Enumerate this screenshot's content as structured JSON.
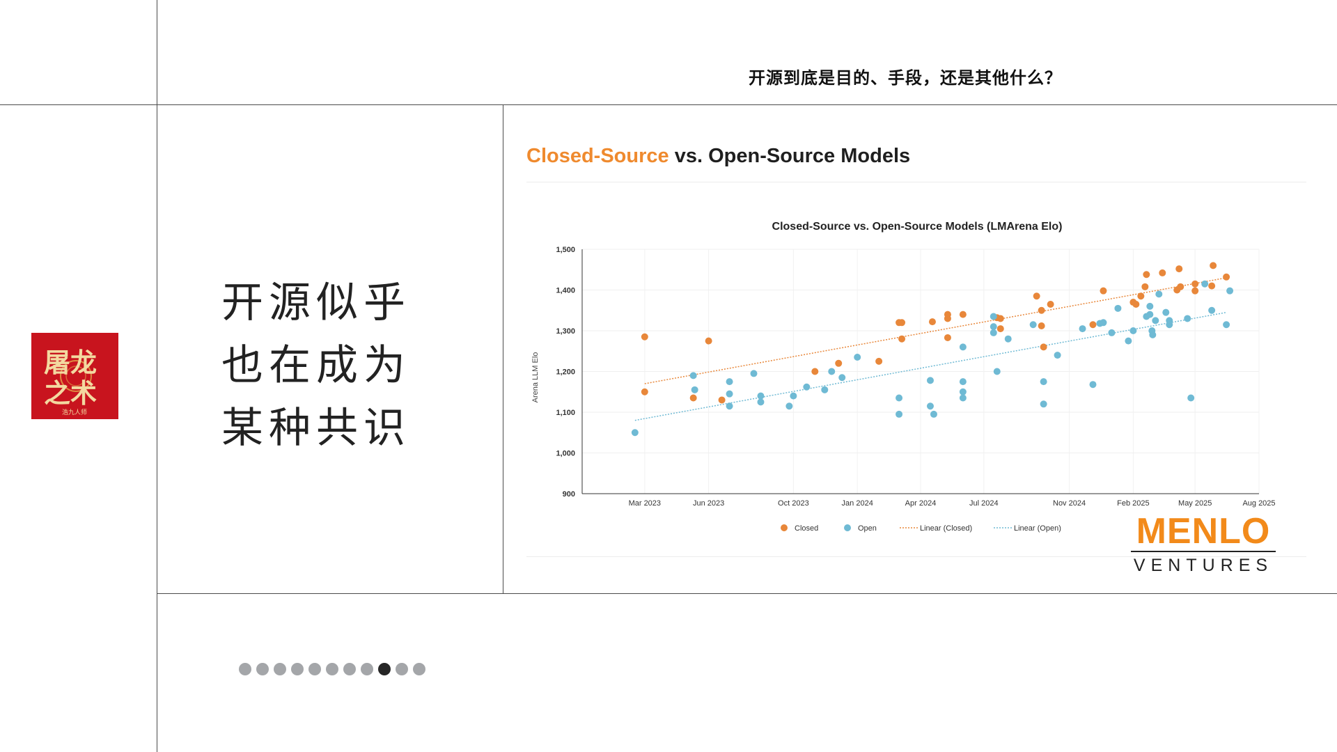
{
  "header": {
    "title": "开源到底是目的、手段，还是其他什么？"
  },
  "logo": {
    "lines": [
      "屠龙",
      "之术"
    ],
    "caption": "浩九人师",
    "background": "#c8141e"
  },
  "slide_text": {
    "lines": [
      "开源似乎",
      "也在成为",
      "某种共识"
    ]
  },
  "card": {
    "heading_accent": "Closed-Source",
    "heading_rest": " vs. Open-Source Models",
    "accent_color": "#ef8a2e"
  },
  "brand": {
    "name": "MENLO",
    "sub": "VENTURES",
    "color": "#f28a1a"
  },
  "pager": {
    "total": 11,
    "active_index": 8
  },
  "chart_data": {
    "type": "scatter",
    "title": "Closed-Source vs. Open-Source Models (LMArena Elo)",
    "xlabel": "",
    "ylabel": "Arena LLM Elo",
    "xlim": [
      "2022-12-01",
      "2025-08-01"
    ],
    "ylim": [
      900,
      1500
    ],
    "x_ticks": [
      {
        "date": "2023-03-01",
        "label": "Mar 2023"
      },
      {
        "date": "2023-06-01",
        "label": "Jun 2023"
      },
      {
        "date": "2023-10-01",
        "label": "Oct 2023"
      },
      {
        "date": "2024-01-01",
        "label": "Jan 2024"
      },
      {
        "date": "2024-04-01",
        "label": "Apr 2024"
      },
      {
        "date": "2024-07-01",
        "label": "Jul 2024"
      },
      {
        "date": "2024-11-01",
        "label": "Nov 2024"
      },
      {
        "date": "2025-02-01",
        "label": "Feb 2025"
      },
      {
        "date": "2025-05-01",
        "label": "May 2025"
      },
      {
        "date": "2025-08-01",
        "label": "Aug 2025"
      }
    ],
    "y_ticks": [
      900,
      1000,
      1100,
      1200,
      1300,
      1400,
      1500
    ],
    "y_tick_labels": [
      "900",
      "1,000",
      "1,100",
      "1,200",
      "1,300",
      "1,400",
      "1,500"
    ],
    "grid": true,
    "legend": {
      "placement": "bottom",
      "items": [
        "Closed",
        "Open",
        "Linear (Closed)",
        "Linear (Open)"
      ]
    },
    "colors": {
      "closed": "#e8873a",
      "open": "#6fbad4"
    },
    "series": [
      {
        "name": "Closed",
        "points": [
          {
            "x": "2023-03-01",
            "y": 1285
          },
          {
            "x": "2023-03-01",
            "y": 1150
          },
          {
            "x": "2023-05-10",
            "y": 1135
          },
          {
            "x": "2023-06-01",
            "y": 1275
          },
          {
            "x": "2023-06-20",
            "y": 1130
          },
          {
            "x": "2023-11-01",
            "y": 1200
          },
          {
            "x": "2023-12-05",
            "y": 1220
          },
          {
            "x": "2024-02-01",
            "y": 1225
          },
          {
            "x": "2024-03-01",
            "y": 1320
          },
          {
            "x": "2024-03-05",
            "y": 1280
          },
          {
            "x": "2024-03-05",
            "y": 1320
          },
          {
            "x": "2024-04-18",
            "y": 1322
          },
          {
            "x": "2024-05-10",
            "y": 1340
          },
          {
            "x": "2024-05-10",
            "y": 1330
          },
          {
            "x": "2024-05-10",
            "y": 1283
          },
          {
            "x": "2024-06-01",
            "y": 1340
          },
          {
            "x": "2024-07-20",
            "y": 1332
          },
          {
            "x": "2024-07-25",
            "y": 1305
          },
          {
            "x": "2024-07-25",
            "y": 1330
          },
          {
            "x": "2024-09-15",
            "y": 1385
          },
          {
            "x": "2024-09-22",
            "y": 1350
          },
          {
            "x": "2024-09-22",
            "y": 1312
          },
          {
            "x": "2024-09-25",
            "y": 1260
          },
          {
            "x": "2024-10-05",
            "y": 1365
          },
          {
            "x": "2024-12-05",
            "y": 1315
          },
          {
            "x": "2024-12-20",
            "y": 1398
          },
          {
            "x": "2025-02-01",
            "y": 1370
          },
          {
            "x": "2025-02-05",
            "y": 1365
          },
          {
            "x": "2025-02-12",
            "y": 1385
          },
          {
            "x": "2025-02-18",
            "y": 1408
          },
          {
            "x": "2025-02-20",
            "y": 1438
          },
          {
            "x": "2025-03-15",
            "y": 1442
          },
          {
            "x": "2025-04-05",
            "y": 1400
          },
          {
            "x": "2025-04-08",
            "y": 1452
          },
          {
            "x": "2025-04-10",
            "y": 1408
          },
          {
            "x": "2025-05-01",
            "y": 1415
          },
          {
            "x": "2025-05-01",
            "y": 1398
          },
          {
            "x": "2025-05-25",
            "y": 1410
          },
          {
            "x": "2025-05-27",
            "y": 1460
          },
          {
            "x": "2025-06-15",
            "y": 1432
          }
        ]
      },
      {
        "name": "Open",
        "points": [
          {
            "x": "2023-02-15",
            "y": 1050
          },
          {
            "x": "2023-05-10",
            "y": 1190
          },
          {
            "x": "2023-05-12",
            "y": 1155
          },
          {
            "x": "2023-07-01",
            "y": 1175
          },
          {
            "x": "2023-07-01",
            "y": 1145
          },
          {
            "x": "2023-07-01",
            "y": 1115
          },
          {
            "x": "2023-08-05",
            "y": 1195
          },
          {
            "x": "2023-08-15",
            "y": 1140
          },
          {
            "x": "2023-08-15",
            "y": 1125
          },
          {
            "x": "2023-09-25",
            "y": 1115
          },
          {
            "x": "2023-10-01",
            "y": 1140
          },
          {
            "x": "2023-10-20",
            "y": 1162
          },
          {
            "x": "2023-11-15",
            "y": 1155
          },
          {
            "x": "2023-11-25",
            "y": 1200
          },
          {
            "x": "2023-12-10",
            "y": 1185
          },
          {
            "x": "2024-01-01",
            "y": 1235
          },
          {
            "x": "2024-03-01",
            "y": 1095
          },
          {
            "x": "2024-03-01",
            "y": 1135
          },
          {
            "x": "2024-04-15",
            "y": 1115
          },
          {
            "x": "2024-04-15",
            "y": 1178
          },
          {
            "x": "2024-04-20",
            "y": 1095
          },
          {
            "x": "2024-06-01",
            "y": 1260
          },
          {
            "x": "2024-06-01",
            "y": 1175
          },
          {
            "x": "2024-06-01",
            "y": 1150
          },
          {
            "x": "2024-06-01",
            "y": 1135
          },
          {
            "x": "2024-07-15",
            "y": 1335
          },
          {
            "x": "2024-07-15",
            "y": 1310
          },
          {
            "x": "2024-07-15",
            "y": 1295
          },
          {
            "x": "2024-07-20",
            "y": 1200
          },
          {
            "x": "2024-08-05",
            "y": 1280
          },
          {
            "x": "2024-09-10",
            "y": 1315
          },
          {
            "x": "2024-09-25",
            "y": 1175
          },
          {
            "x": "2024-09-25",
            "y": 1120
          },
          {
            "x": "2024-10-15",
            "y": 1240
          },
          {
            "x": "2024-11-20",
            "y": 1305
          },
          {
            "x": "2024-12-05",
            "y": 1168
          },
          {
            "x": "2024-12-15",
            "y": 1318
          },
          {
            "x": "2024-12-20",
            "y": 1320
          },
          {
            "x": "2025-01-01",
            "y": 1295
          },
          {
            "x": "2025-01-10",
            "y": 1355
          },
          {
            "x": "2025-01-25",
            "y": 1275
          },
          {
            "x": "2025-02-01",
            "y": 1300
          },
          {
            "x": "2025-02-20",
            "y": 1335
          },
          {
            "x": "2025-02-25",
            "y": 1340
          },
          {
            "x": "2025-02-25",
            "y": 1360
          },
          {
            "x": "2025-02-28",
            "y": 1300
          },
          {
            "x": "2025-03-01",
            "y": 1290
          },
          {
            "x": "2025-03-05",
            "y": 1325
          },
          {
            "x": "2025-03-10",
            "y": 1390
          },
          {
            "x": "2025-03-20",
            "y": 1345
          },
          {
            "x": "2025-03-25",
            "y": 1325
          },
          {
            "x": "2025-03-25",
            "y": 1315
          },
          {
            "x": "2025-04-20",
            "y": 1330
          },
          {
            "x": "2025-04-25",
            "y": 1135
          },
          {
            "x": "2025-05-15",
            "y": 1415
          },
          {
            "x": "2025-05-25",
            "y": 1350
          },
          {
            "x": "2025-06-15",
            "y": 1315
          },
          {
            "x": "2025-06-20",
            "y": 1398
          }
        ]
      }
    ],
    "trendlines": [
      {
        "name": "Linear (Closed)",
        "from": {
          "x": "2023-03-01",
          "y": 1170
        },
        "to": {
          "x": "2025-06-15",
          "y": 1430
        }
      },
      {
        "name": "Linear (Open)",
        "from": {
          "x": "2023-02-15",
          "y": 1080
        },
        "to": {
          "x": "2025-06-15",
          "y": 1345
        }
      }
    ]
  }
}
